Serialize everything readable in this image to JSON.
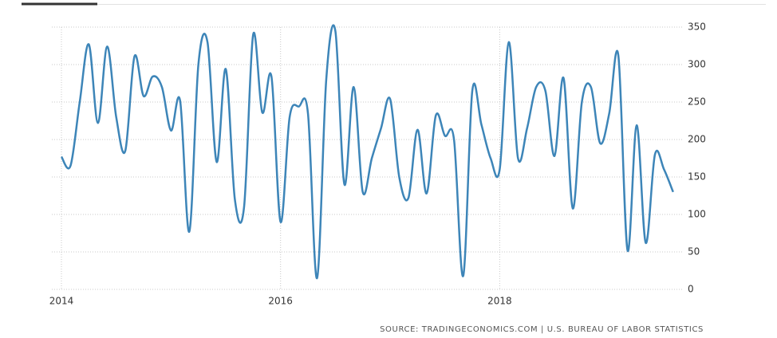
{
  "chart_data": {
    "type": "line",
    "source": "SOURCE: TRADINGECONOMICS.COM | U.S. BUREAU OF LABOR STATISTICS",
    "x": [
      2014,
      2014.083,
      2014.167,
      2014.25,
      2014.333,
      2014.417,
      2014.5,
      2014.583,
      2014.667,
      2014.75,
      2014.833,
      2014.917,
      2015,
      2015.083,
      2015.167,
      2015.25,
      2015.333,
      2015.417,
      2015.5,
      2015.583,
      2015.667,
      2015.75,
      2015.833,
      2015.917,
      2016,
      2016.083,
      2016.167,
      2016.25,
      2016.333,
      2016.417,
      2016.5,
      2016.583,
      2016.667,
      2016.75,
      2016.833,
      2016.917,
      2017,
      2017.083,
      2017.167,
      2017.25,
      2017.333,
      2017.417,
      2017.5,
      2017.583,
      2017.667,
      2017.75,
      2017.833,
      2017.917,
      2018,
      2018.083,
      2018.167,
      2018.25,
      2018.333,
      2018.417,
      2018.5,
      2018.583,
      2018.667,
      2018.75,
      2018.833,
      2018.917,
      2019,
      2019.083,
      2019.167,
      2019.25,
      2019.333,
      2019.417,
      2019.5,
      2019.583
    ],
    "series": [
      {
        "color": "#3d85b8",
        "values": [
          177,
          165,
          250,
          327,
          222,
          324,
          230,
          185,
          311,
          258,
          284,
          270,
          212,
          252,
          77,
          300,
          330,
          170,
          294,
          120,
          110,
          340,
          236,
          284,
          90,
          230,
          244,
          235,
          15,
          280,
          345,
          140,
          270,
          130,
          175,
          215,
          254,
          150,
          122,
          213,
          128,
          232,
          205,
          200,
          18,
          265,
          220,
          175,
          160,
          330,
          175,
          215,
          270,
          265,
          178,
          282,
          108,
          250,
          270,
          195,
          235,
          312,
          52,
          219,
          62,
          180,
          160,
          130
        ]
      }
    ],
    "xlim": [
      2014,
      2019.65
    ],
    "ylim": [
      0,
      350
    ],
    "xticks": [
      2014,
      2016,
      2018
    ],
    "yticks": [
      0,
      50,
      100,
      150,
      200,
      250,
      300,
      350
    ],
    "grid": true
  }
}
